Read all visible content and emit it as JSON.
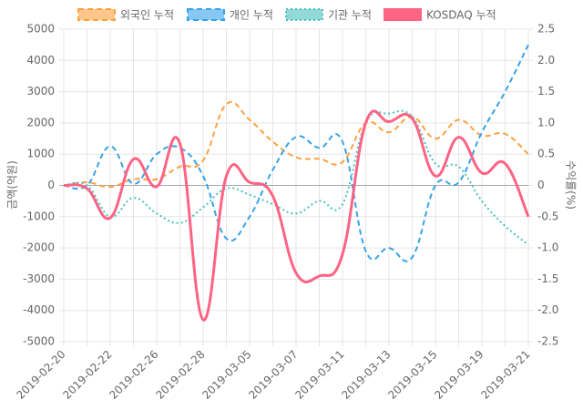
{
  "chart_data": {
    "type": "line",
    "y_label": "금액(억원)",
    "y2_label": "수익률(%)",
    "categories": [
      "2019-02-20",
      null,
      "2019-02-22",
      null,
      "2019-02-26",
      null,
      "2019-02-28",
      null,
      "2019-03-05",
      null,
      "2019-03-07",
      null,
      "2019-03-11",
      null,
      "2019-03-13",
      null,
      "2019-03-15",
      null,
      "2019-03-19",
      null,
      "2019-03-21"
    ],
    "series": [
      {
        "name": "외국인 누적",
        "color": "#ffa040",
        "style": "dashed",
        "values": [
          0,
          100,
          -50,
          200,
          200,
          600,
          800,
          2600,
          2100,
          1400,
          900,
          850,
          750,
          2000,
          1700,
          2200,
          1500,
          2100,
          1600,
          1650,
          1000
        ]
      },
      {
        "name": "개인 누적",
        "color": "#36a2eb",
        "style": "dashed",
        "values": [
          0,
          0,
          1250,
          50,
          1000,
          1200,
          300,
          -1700,
          -1000,
          500,
          1550,
          1200,
          1400,
          -2100,
          -2000,
          -2300,
          0,
          100,
          1700,
          3000,
          4500
        ]
      },
      {
        "name": "기관 누적",
        "color": "#4bc0c0",
        "style": "dotted",
        "values": [
          0,
          0,
          -1000,
          -400,
          -900,
          -1200,
          -700,
          -100,
          -300,
          -600,
          -900,
          -500,
          -600,
          2000,
          2300,
          2200,
          700,
          600,
          -500,
          -1300,
          -1900
        ]
      },
      {
        "name": "KOSDAQ 누적",
        "color": "#ff6384",
        "style": "solid",
        "axis": "y2",
        "values": [
          0,
          -0.05,
          -0.52,
          0.42,
          -0.02,
          0.67,
          -2.15,
          0.15,
          0.05,
          -0.17,
          -1.4,
          -1.45,
          -1.1,
          1.0,
          1.02,
          1.07,
          0.15,
          0.77,
          0.2,
          0.35,
          -0.5
        ]
      }
    ],
    "ylim": [
      -5000,
      5000
    ],
    "yticks": [
      -5000,
      -4000,
      -3000,
      -2000,
      -1000,
      0,
      1000,
      2000,
      3000,
      4000,
      5000
    ],
    "y2lim": [
      -2.5,
      2.5
    ],
    "y2ticks": [
      -2.5,
      {
        "value": -2,
        "label": "-2.0"
      },
      -1.5,
      {
        "value": -1,
        "label": "-1.0"
      },
      -0.5,
      0,
      0.5,
      {
        "value": 1,
        "label": "1.0"
      },
      1.5,
      {
        "value": 2,
        "label": "2.0"
      },
      2.5
    ],
    "grid": true
  }
}
